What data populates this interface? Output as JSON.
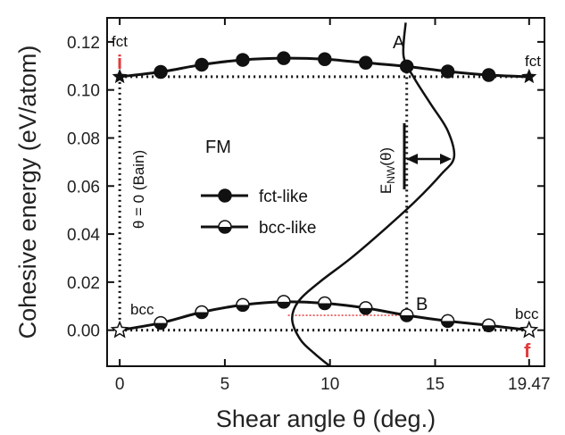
{
  "chart_data": {
    "type": "line",
    "xlabel": "Shear angle θ (deg.)",
    "ylabel": "Cohesive energy (eV/atom)",
    "xlim": [
      -0.6,
      20.2
    ],
    "ylim": [
      -0.015,
      0.13
    ],
    "x_ticks": [
      0,
      5,
      10,
      15,
      19.47
    ],
    "x_tick_labels": [
      "0",
      "5",
      "10",
      "15",
      "19.47"
    ],
    "y_ticks": [
      0.0,
      0.02,
      0.04,
      0.06,
      0.08,
      0.1,
      0.12
    ],
    "y_tick_labels": [
      "0.00",
      "0.02",
      "0.04",
      "0.06",
      "0.08",
      "0.10",
      "0.12"
    ],
    "series": [
      {
        "name": "fct-like",
        "marker": "filled-circle",
        "x": [
          0,
          1.95,
          3.9,
          5.85,
          7.8,
          9.75,
          11.7,
          13.65,
          15.6,
          17.55,
          19.47
        ],
        "y": [
          0.1055,
          0.1075,
          0.1105,
          0.1125,
          0.1132,
          0.1128,
          0.1113,
          0.1098,
          0.1077,
          0.1062,
          0.1055
        ]
      },
      {
        "name": "bcc-like",
        "marker": "half-filled-circle",
        "x": [
          0,
          1.95,
          3.9,
          5.85,
          7.8,
          9.75,
          11.7,
          13.65,
          15.6,
          17.55,
          19.47
        ],
        "y": [
          0.0,
          0.003,
          0.0075,
          0.0105,
          0.0118,
          0.0112,
          0.0092,
          0.0062,
          0.0038,
          0.002,
          0.0
        ]
      }
    ],
    "curve_ENW": {
      "x": [
        10.0,
        9.3,
        8.6,
        8.2,
        8.5,
        9.5,
        11.0,
        12.6,
        14.1,
        15.3,
        15.9,
        15.6,
        14.8,
        14.0,
        13.5,
        13.6
      ],
      "y": [
        -0.015,
        -0.01,
        -0.004,
        0.0045,
        0.012,
        0.02,
        0.03,
        0.042,
        0.054,
        0.065,
        0.072,
        0.083,
        0.094,
        0.105,
        0.114,
        0.128
      ]
    },
    "reference_lines": {
      "fct_level": 0.1055,
      "bcc_level": 0.0,
      "bain_x": 0,
      "dotted_x": 13.65,
      "red_segment": {
        "x": [
          8.0,
          13.65
        ],
        "y": 0.0062
      }
    },
    "annotations": {
      "fct_left": "fct",
      "fct_right": "fct",
      "bcc_left": "bcc",
      "bcc_right": "bcc",
      "i_label": "i",
      "f_label": "f",
      "A": "A",
      "B": "B",
      "FM": "FM",
      "bain": "θ = 0 (Bain)",
      "ENW_main": "E",
      "ENW_sub": "NW",
      "ENW_arg": "(θ)"
    },
    "legend_placement": "center-left",
    "grid": false
  }
}
